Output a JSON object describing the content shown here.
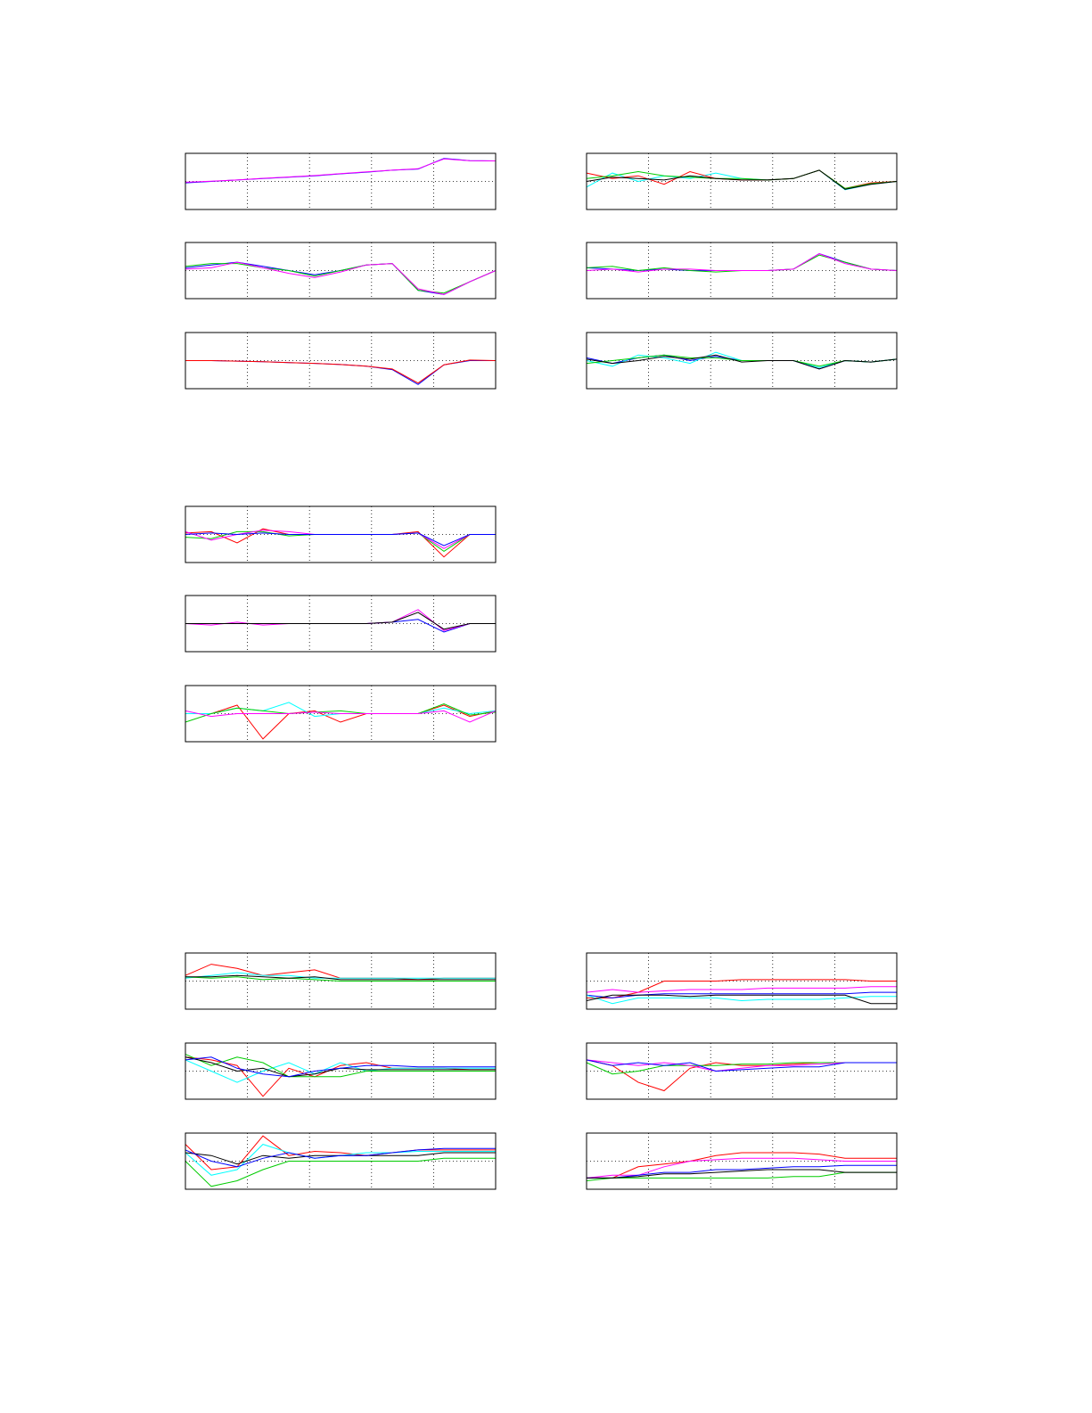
{
  "chart_data": [
    {
      "type": "line",
      "ylim": [
        -1,
        1
      ],
      "grid": true,
      "series": [
        {
          "color": "#0000ff",
          "values": [
            -0.05,
            0,
            0.05,
            0.1,
            0.15,
            0.2,
            0.27,
            0.33,
            0.4,
            0.44,
            0.82,
            0.74,
            0.73
          ]
        },
        {
          "color": "#ff00ff",
          "values": [
            -0.03,
            0.01,
            0.05,
            0.11,
            0.16,
            0.21,
            0.28,
            0.34,
            0.4,
            0.45,
            0.8,
            0.74,
            0.73
          ]
        }
      ]
    },
    {
      "type": "line",
      "ylim": [
        -1,
        1
      ],
      "grid": true,
      "series": [
        {
          "color": "#0000ff",
          "values": [
            0.1,
            0.2,
            0.3,
            0.15,
            0.0,
            -0.15,
            0.0,
            0.2,
            0.25,
            -0.7,
            -0.85,
            -0.4,
            0.0
          ]
        },
        {
          "color": "#00cc00",
          "values": [
            0.15,
            0.25,
            0.25,
            0.1,
            0.0,
            -0.2,
            0.0,
            0.2,
            0.25,
            -0.7,
            -0.8,
            -0.4,
            0.0
          ]
        },
        {
          "color": "#ff00ff",
          "values": [
            0.05,
            0.1,
            0.3,
            0.1,
            -0.1,
            -0.25,
            -0.05,
            0.2,
            0.25,
            -0.65,
            -0.85,
            -0.4,
            0.0
          ]
        }
      ]
    },
    {
      "type": "line",
      "ylim": [
        -1,
        1
      ],
      "grid": true,
      "series": [
        {
          "color": "#0000ff",
          "values": [
            0.0,
            0.0,
            -0.02,
            -0.04,
            -0.07,
            -0.1,
            -0.14,
            -0.2,
            -0.32,
            -0.85,
            -0.15,
            0.0,
            0.0
          ]
        },
        {
          "color": "#ff0000",
          "values": [
            0.0,
            0.0,
            -0.02,
            -0.04,
            -0.07,
            -0.1,
            -0.14,
            -0.2,
            -0.3,
            -0.8,
            -0.15,
            0.02,
            0.0
          ]
        }
      ]
    },
    {
      "type": "line",
      "ylim": [
        -1,
        1
      ],
      "grid": true,
      "series": [
        {
          "color": "#00ffff",
          "values": [
            -0.2,
            0.3,
            0.0,
            0.2,
            0.1,
            0.3,
            0.1,
            0.05,
            0.1,
            0.4,
            -0.3,
            -0.1,
            0.0
          ]
        },
        {
          "color": "#ff0000",
          "values": [
            0.3,
            0.1,
            0.2,
            -0.1,
            0.35,
            0.1,
            0.05,
            0.05,
            0.1,
            0.4,
            -0.25,
            -0.05,
            0.0
          ]
        },
        {
          "color": "#00cc00",
          "values": [
            0.1,
            0.2,
            0.35,
            0.2,
            0.15,
            0.1,
            0.1,
            0.05,
            0.1,
            0.4,
            -0.25,
            -0.08,
            0.0
          ]
        },
        {
          "color": "#000000",
          "values": [
            0.0,
            0.15,
            0.1,
            0.05,
            0.2,
            0.1,
            0.05,
            0.05,
            0.1,
            0.4,
            -0.28,
            -0.1,
            0.0
          ]
        }
      ]
    },
    {
      "type": "line",
      "ylim": [
        -1,
        1
      ],
      "grid": true,
      "series": [
        {
          "color": "#0000ff",
          "values": [
            0.1,
            0.05,
            0.0,
            0.05,
            0.0,
            0.0,
            0.0,
            0.0,
            0.05,
            0.6,
            0.3,
            0.05,
            0.0
          ]
        },
        {
          "color": "#00cc00",
          "values": [
            0.1,
            0.15,
            0.0,
            0.1,
            0.0,
            -0.05,
            0.0,
            0.0,
            0.05,
            0.55,
            0.3,
            0.05,
            0.0
          ]
        },
        {
          "color": "#ff00ff",
          "values": [
            0.0,
            0.05,
            -0.05,
            0.05,
            0.05,
            0.0,
            0.0,
            0.0,
            0.05,
            0.6,
            0.25,
            0.05,
            0.0
          ]
        }
      ]
    },
    {
      "type": "line",
      "ylim": [
        -1,
        1
      ],
      "grid": true,
      "series": [
        {
          "color": "#0000ff",
          "values": [
            0.1,
            -0.1,
            0.1,
            0.2,
            0.0,
            0.15,
            0.0,
            0.0,
            0.0,
            -0.3,
            0.0,
            -0.05,
            0.05
          ]
        },
        {
          "color": "#00ffff",
          "values": [
            0.0,
            -0.2,
            0.2,
            0.1,
            -0.1,
            0.3,
            0.0,
            0.0,
            0.0,
            -0.25,
            0.0,
            -0.05,
            0.05
          ]
        },
        {
          "color": "#00cc00",
          "values": [
            -0.1,
            0.0,
            0.1,
            0.2,
            0.1,
            0.1,
            0.0,
            0.0,
            0.0,
            -0.2,
            0.0,
            -0.05,
            0.05
          ]
        },
        {
          "color": "#000000",
          "values": [
            0.05,
            -0.1,
            0.0,
            0.15,
            0.05,
            0.2,
            -0.05,
            0.0,
            0.0,
            -0.3,
            0.0,
            -0.05,
            0.05
          ]
        }
      ]
    },
    {
      "type": "line",
      "ylim": [
        -1,
        1
      ],
      "grid": true,
      "series": [
        {
          "color": "#ff0000",
          "values": [
            0.05,
            0.1,
            -0.3,
            0.2,
            0.0,
            0.0,
            0.0,
            0.0,
            0.0,
            0.1,
            -0.8,
            0.0,
            0.0
          ]
        },
        {
          "color": "#00cc00",
          "values": [
            -0.1,
            -0.15,
            0.1,
            0.1,
            -0.05,
            0.0,
            0.0,
            0.0,
            0.0,
            0.05,
            -0.6,
            0.0,
            0.0
          ]
        },
        {
          "color": "#ff00ff",
          "values": [
            0.1,
            -0.2,
            0.0,
            0.15,
            0.1,
            0.0,
            0.0,
            0.0,
            0.0,
            0.05,
            -0.5,
            0.0,
            0.0
          ]
        },
        {
          "color": "#0000ff",
          "values": [
            0.0,
            0.05,
            0.0,
            0.05,
            0.0,
            0.0,
            0.0,
            0.0,
            0.0,
            0.05,
            -0.4,
            0.0,
            0.0
          ]
        }
      ]
    },
    {
      "type": "line",
      "ylim": [
        -1,
        1
      ],
      "grid": true,
      "series": [
        {
          "color": "#0000ff",
          "values": [
            0.0,
            0.0,
            0.0,
            0.0,
            0.0,
            0.0,
            0.0,
            0.0,
            0.05,
            0.15,
            -0.3,
            0.0,
            0.0
          ]
        },
        {
          "color": "#ff00ff",
          "values": [
            0.0,
            -0.05,
            0.05,
            -0.05,
            0.0,
            0.0,
            0.0,
            0.0,
            0.05,
            0.5,
            -0.25,
            0.0,
            0.0
          ]
        },
        {
          "color": "#000000",
          "values": [
            0.0,
            0.0,
            0.0,
            0.0,
            0.0,
            0.0,
            0.0,
            0.0,
            0.05,
            0.4,
            -0.2,
            0.0,
            0.0
          ]
        }
      ]
    },
    {
      "type": "line",
      "ylim": [
        -1,
        1
      ],
      "grid": true,
      "series": [
        {
          "color": "#ff0000",
          "values": [
            0.0,
            0.0,
            0.3,
            -0.9,
            0.0,
            0.1,
            -0.3,
            0.0,
            0.0,
            0.0,
            0.3,
            -0.1,
            0.1
          ]
        },
        {
          "color": "#00ffff",
          "values": [
            0.0,
            0.0,
            0.2,
            0.1,
            0.4,
            -0.1,
            0.0,
            0.0,
            0.0,
            0.0,
            0.2,
            0.0,
            0.1
          ]
        },
        {
          "color": "#00cc00",
          "values": [
            -0.3,
            0.0,
            0.2,
            0.1,
            0.0,
            0.05,
            0.1,
            0.0,
            0.0,
            0.0,
            0.35,
            -0.05,
            0.05
          ]
        },
        {
          "color": "#ff00ff",
          "values": [
            0.1,
            -0.1,
            0.0,
            0.0,
            0.0,
            0.05,
            0.0,
            0.0,
            0.0,
            0.0,
            0.1,
            -0.3,
            0.1
          ]
        }
      ]
    },
    {
      "type": "line",
      "ylim": [
        -1,
        1
      ],
      "grid": true,
      "series": [
        {
          "color": "#ff0000",
          "values": [
            0.2,
            0.6,
            0.45,
            0.2,
            0.3,
            0.4,
            0.1,
            0.1,
            0.1,
            0.05,
            0.1,
            0.1,
            0.1
          ]
        },
        {
          "color": "#00ffff",
          "values": [
            0.1,
            0.2,
            0.3,
            0.2,
            0.2,
            0.1,
            0.1,
            0.1,
            0.1,
            0.1,
            0.1,
            0.1,
            0.1
          ]
        },
        {
          "color": "#00cc00",
          "values": [
            0.15,
            0.1,
            0.15,
            0.05,
            0.1,
            0.05,
            0.0,
            0.0,
            0.0,
            0.0,
            0.0,
            0.0,
            0.0
          ]
        },
        {
          "color": "#000000",
          "values": [
            0.15,
            0.15,
            0.2,
            0.15,
            0.1,
            0.15,
            0.05,
            0.05,
            0.05,
            0.05,
            0.05,
            0.05,
            0.05
          ]
        }
      ]
    },
    {
      "type": "line",
      "ylim": [
        -1,
        1
      ],
      "grid": true,
      "series": [
        {
          "color": "#ff0000",
          "values": [
            0.5,
            0.4,
            0.2,
            -0.9,
            0.1,
            -0.2,
            0.2,
            0.3,
            0.1,
            0.1,
            0.1,
            0.05,
            0.05
          ]
        },
        {
          "color": "#00ffff",
          "values": [
            0.4,
            0.0,
            -0.4,
            0.0,
            0.3,
            -0.1,
            0.3,
            0.0,
            0.1,
            0.1,
            0.1,
            0.1,
            0.1
          ]
        },
        {
          "color": "#00cc00",
          "values": [
            0.6,
            0.2,
            0.5,
            0.3,
            -0.2,
            -0.2,
            -0.2,
            0.0,
            0.0,
            0.0,
            0.0,
            0.0,
            0.0
          ]
        },
        {
          "color": "#000000",
          "values": [
            0.5,
            0.3,
            0.0,
            0.1,
            -0.2,
            -0.1,
            0.1,
            0.05,
            0.05,
            0.05,
            0.05,
            0.05,
            0.05
          ]
        },
        {
          "color": "#0000ff",
          "values": [
            0.4,
            0.5,
            0.1,
            -0.1,
            -0.2,
            0.0,
            0.1,
            0.2,
            0.2,
            0.15,
            0.15,
            0.15,
            0.15
          ]
        }
      ]
    },
    {
      "type": "line",
      "ylim": [
        -1,
        1
      ],
      "grid": true,
      "series": [
        {
          "color": "#ff0000",
          "values": [
            0.6,
            -0.3,
            -0.2,
            0.9,
            0.2,
            0.35,
            0.3,
            0.2,
            0.3,
            0.4,
            0.4,
            0.4,
            0.4
          ]
        },
        {
          "color": "#00cc00",
          "values": [
            0.0,
            -0.9,
            -0.7,
            -0.3,
            0.0,
            0.0,
            0.0,
            0.0,
            0.0,
            0.0,
            0.1,
            0.1,
            0.1
          ]
        },
        {
          "color": "#00ffff",
          "values": [
            0.3,
            -0.5,
            -0.3,
            0.6,
            0.3,
            0.1,
            0.2,
            0.3,
            0.3,
            0.35,
            0.35,
            0.35,
            0.35
          ]
        },
        {
          "color": "#000000",
          "values": [
            0.3,
            0.2,
            -0.1,
            0.2,
            0.1,
            0.2,
            0.2,
            0.2,
            0.2,
            0.2,
            0.3,
            0.3,
            0.3
          ]
        },
        {
          "color": "#0000ff",
          "values": [
            0.4,
            0.0,
            -0.2,
            0.1,
            0.3,
            0.1,
            0.2,
            0.2,
            0.3,
            0.4,
            0.45,
            0.45,
            0.45
          ]
        }
      ]
    },
    {
      "type": "line",
      "ylim": [
        -1,
        1
      ],
      "grid": true,
      "series": [
        {
          "color": "#ff0000",
          "values": [
            -0.6,
            -0.6,
            -0.4,
            0.0,
            0.0,
            0.0,
            0.05,
            0.05,
            0.05,
            0.05,
            0.05,
            0.0,
            0.0
          ]
        },
        {
          "color": "#ff00ff",
          "values": [
            -0.4,
            -0.3,
            -0.4,
            -0.35,
            -0.3,
            -0.3,
            -0.3,
            -0.25,
            -0.25,
            -0.25,
            -0.25,
            -0.2,
            -0.2
          ]
        },
        {
          "color": "#0000ff",
          "values": [
            -0.5,
            -0.6,
            -0.5,
            -0.45,
            -0.45,
            -0.45,
            -0.45,
            -0.45,
            -0.45,
            -0.45,
            -0.45,
            -0.4,
            -0.4
          ]
        },
        {
          "color": "#00ffff",
          "values": [
            -0.5,
            -0.8,
            -0.6,
            -0.6,
            -0.6,
            -0.6,
            -0.7,
            -0.65,
            -0.65,
            -0.65,
            -0.6,
            -0.55,
            -0.55
          ]
        },
        {
          "color": "#000000",
          "values": [
            -0.7,
            -0.5,
            -0.5,
            -0.5,
            -0.55,
            -0.5,
            -0.5,
            -0.5,
            -0.5,
            -0.5,
            -0.5,
            -0.8,
            -0.8
          ]
        }
      ]
    },
    {
      "type": "line",
      "ylim": [
        -1,
        1
      ],
      "grid": true,
      "series": [
        {
          "color": "#ff0000",
          "values": [
            0.4,
            0.2,
            -0.4,
            -0.7,
            0.1,
            0.3,
            0.2,
            0.2,
            0.25,
            0.3,
            0.3,
            0.3,
            0.3
          ]
        },
        {
          "color": "#00cc00",
          "values": [
            0.3,
            -0.1,
            0.0,
            0.2,
            0.2,
            0.2,
            0.25,
            0.25,
            0.3,
            0.3,
            0.3,
            0.3,
            0.3
          ]
        },
        {
          "color": "#ff00ff",
          "values": [
            0.4,
            0.3,
            0.2,
            0.3,
            0.2,
            0.0,
            0.1,
            0.2,
            0.2,
            0.25,
            0.3,
            0.3,
            0.3
          ]
        },
        {
          "color": "#0000ff",
          "values": [
            0.4,
            0.2,
            0.3,
            0.2,
            0.3,
            0.0,
            0.05,
            0.1,
            0.15,
            0.15,
            0.3,
            0.3,
            0.3
          ]
        }
      ]
    },
    {
      "type": "line",
      "ylim": [
        -1,
        1
      ],
      "grid": true,
      "series": [
        {
          "color": "#ff0000",
          "values": [
            -0.6,
            -0.6,
            -0.2,
            -0.1,
            0.0,
            0.2,
            0.3,
            0.3,
            0.3,
            0.25,
            0.1,
            0.1,
            0.1
          ]
        },
        {
          "color": "#ff00ff",
          "values": [
            -0.6,
            -0.5,
            -0.5,
            -0.2,
            0.0,
            0.05,
            0.1,
            0.1,
            0.1,
            0.05,
            0.0,
            0.0,
            0.0
          ]
        },
        {
          "color": "#0000ff",
          "values": [
            -0.6,
            -0.6,
            -0.5,
            -0.4,
            -0.4,
            -0.3,
            -0.3,
            -0.25,
            -0.2,
            -0.2,
            -0.15,
            -0.15,
            -0.15
          ]
        },
        {
          "color": "#00cc00",
          "values": [
            -0.7,
            -0.6,
            -0.6,
            -0.6,
            -0.6,
            -0.6,
            -0.6,
            -0.6,
            -0.55,
            -0.55,
            -0.4,
            -0.4,
            -0.4
          ]
        },
        {
          "color": "#000000",
          "values": [
            -0.6,
            -0.6,
            -0.55,
            -0.45,
            -0.45,
            -0.4,
            -0.35,
            -0.3,
            -0.3,
            -0.3,
            -0.4,
            -0.4,
            -0.4
          ]
        }
      ]
    }
  ]
}
